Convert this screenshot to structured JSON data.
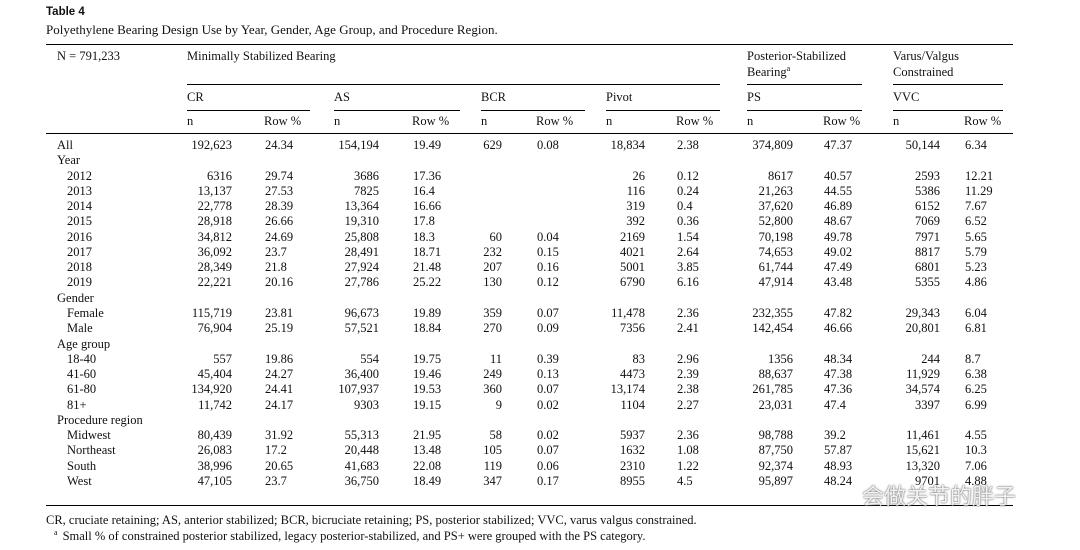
{
  "title": "Table 4",
  "subtitle": "Polyethylene Bearing Design Use by Year, Gender, Age Group, and Procedure Region.",
  "table": {
    "n_label": "N = 791,233",
    "groups": [
      {
        "label": "Minimally Stabilized Bearing"
      },
      {
        "label": "Posterior-Stabilized Bearing",
        "note": "a"
      },
      {
        "label": "Varus/Valgus Constrained"
      }
    ],
    "subgroups": [
      "CR",
      "AS",
      "BCR",
      "Pivot",
      "PS",
      "VVC"
    ],
    "columns": [
      "n",
      "Row %",
      "n",
      "Row %",
      "n",
      "Row %",
      "n",
      "Row %",
      "n",
      "Row %",
      "n",
      "Row %"
    ],
    "all": {
      "label": "All",
      "cells": [
        "192,623",
        "24.34",
        "154,194",
        "19.49",
        "629",
        "0.08",
        "18,834",
        "2.38",
        "374,809",
        "47.37",
        "50,144",
        "6.34"
      ]
    },
    "sections": [
      {
        "label": "Year",
        "rows": [
          {
            "label": "2012",
            "cells": [
              "6316",
              "29.74",
              "3686",
              "17.36",
              null,
              null,
              "26",
              "0.12",
              "8617",
              "40.57",
              "2593",
              "12.21"
            ]
          },
          {
            "label": "2013",
            "cells": [
              "13,137",
              "27.53",
              "7825",
              "16.4",
              null,
              null,
              "116",
              "0.24",
              "21,263",
              "44.55",
              "5386",
              "11.29"
            ]
          },
          {
            "label": "2014",
            "cells": [
              "22,778",
              "28.39",
              "13,364",
              "16.66",
              null,
              null,
              "319",
              "0.4",
              "37,620",
              "46.89",
              "6152",
              "7.67"
            ]
          },
          {
            "label": "2015",
            "cells": [
              "28,918",
              "26.66",
              "19,310",
              "17.8",
              null,
              null,
              "392",
              "0.36",
              "52,800",
              "48.67",
              "7069",
              "6.52"
            ]
          },
          {
            "label": "2016",
            "cells": [
              "34,812",
              "24.69",
              "25,808",
              "18.3",
              "60",
              "0.04",
              "2169",
              "1.54",
              "70,198",
              "49.78",
              "7971",
              "5.65"
            ]
          },
          {
            "label": "2017",
            "cells": [
              "36,092",
              "23.7",
              "28,491",
              "18.71",
              "232",
              "0.15",
              "4021",
              "2.64",
              "74,653",
              "49.02",
              "8817",
              "5.79"
            ]
          },
          {
            "label": "2018",
            "cells": [
              "28,349",
              "21.8",
              "27,924",
              "21.48",
              "207",
              "0.16",
              "5001",
              "3.85",
              "61,744",
              "47.49",
              "6801",
              "5.23"
            ]
          },
          {
            "label": "2019",
            "cells": [
              "22,221",
              "20.16",
              "27,786",
              "25.22",
              "130",
              "0.12",
              "6790",
              "6.16",
              "47,914",
              "43.48",
              "5355",
              "4.86"
            ]
          }
        ]
      },
      {
        "label": "Gender",
        "rows": [
          {
            "label": "Female",
            "cells": [
              "115,719",
              "23.81",
              "96,673",
              "19.89",
              "359",
              "0.07",
              "11,478",
              "2.36",
              "232,355",
              "47.82",
              "29,343",
              "6.04"
            ]
          },
          {
            "label": "Male",
            "cells": [
              "76,904",
              "25.19",
              "57,521",
              "18.84",
              "270",
              "0.09",
              "7356",
              "2.41",
              "142,454",
              "46.66",
              "20,801",
              "6.81"
            ]
          }
        ]
      },
      {
        "label": "Age group",
        "rows": [
          {
            "label": "18-40",
            "cells": [
              "557",
              "19.86",
              "554",
              "19.75",
              "11",
              "0.39",
              "83",
              "2.96",
              "1356",
              "48.34",
              "244",
              "8.7"
            ]
          },
          {
            "label": "41-60",
            "cells": [
              "45,404",
              "24.27",
              "36,400",
              "19.46",
              "249",
              "0.13",
              "4473",
              "2.39",
              "88,637",
              "47.38",
              "11,929",
              "6.38"
            ]
          },
          {
            "label": "61-80",
            "cells": [
              "134,920",
              "24.41",
              "107,937",
              "19.53",
              "360",
              "0.07",
              "13,174",
              "2.38",
              "261,785",
              "47.36",
              "34,574",
              "6.25"
            ]
          },
          {
            "label": "81+",
            "cells": [
              "11,742",
              "24.17",
              "9303",
              "19.15",
              "9",
              "0.02",
              "1104",
              "2.27",
              "23,031",
              "47.4",
              "3397",
              "6.99"
            ]
          }
        ]
      },
      {
        "label": "Procedure region",
        "rows": [
          {
            "label": "Midwest",
            "cells": [
              "80,439",
              "31.92",
              "55,313",
              "21.95",
              "58",
              "0.02",
              "5937",
              "2.36",
              "98,788",
              "39.2",
              "11,461",
              "4.55"
            ]
          },
          {
            "label": "Northeast",
            "cells": [
              "26,083",
              "17.2",
              "20,448",
              "13.48",
              "105",
              "0.07",
              "1632",
              "1.08",
              "87,750",
              "57.87",
              "15,621",
              "10.3"
            ]
          },
          {
            "label": "South",
            "cells": [
              "38,996",
              "20.65",
              "41,683",
              "22.08",
              "119",
              "0.06",
              "2310",
              "1.22",
              "92,374",
              "48.93",
              "13,320",
              "7.06"
            ]
          },
          {
            "label": "West",
            "cells": [
              "47,105",
              "23.7",
              "36,750",
              "18.49",
              "347",
              "0.17",
              "8955",
              "4.5",
              "95,897",
              "48.24",
              "9701",
              "4.88"
            ]
          }
        ]
      }
    ]
  },
  "footnotes": [
    {
      "text": "CR, cruciate retaining; AS, anterior stabilized; BCR, bicruciate retaining; PS, posterior stabilized; VVC, varus valgus constrained."
    },
    {
      "mark": "a",
      "text": "Small % of constrained posterior stabilized, legacy posterior-stabilized, and PS+ were grouped with the PS category."
    }
  ],
  "watermark": "会做关节的胖子"
}
